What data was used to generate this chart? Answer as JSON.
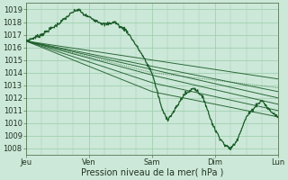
{
  "xlabel": "Pression niveau de la mer( hPa )",
  "ylim": [
    1007.5,
    1019.5
  ],
  "yticks": [
    1008,
    1009,
    1010,
    1011,
    1012,
    1013,
    1014,
    1015,
    1016,
    1017,
    1018,
    1019
  ],
  "day_labels": [
    "Jeu",
    "Ven",
    "Sam",
    "Dim",
    "Lun"
  ],
  "day_ticks": [
    0,
    24,
    48,
    72,
    96
  ],
  "xlim": [
    0,
    96
  ],
  "bg_color": "#cce8d8",
  "grid_color": "#99ccaa",
  "line_color": "#1a5c28",
  "fig_bg": "#cce8d8",
  "xlabel_fontsize": 7,
  "tick_fontsize": 6
}
